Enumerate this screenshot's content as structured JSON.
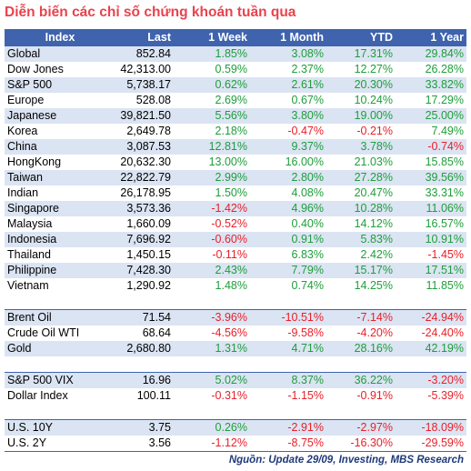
{
  "title": "Diễn biến các chỉ số chứng khoán tuần qua",
  "headers": [
    "Index",
    "Last",
    "1 Week",
    "1 Month",
    "YTD",
    "1 Year"
  ],
  "groups": [
    [
      [
        "Global",
        "852.84",
        "1.85%",
        "3.08%",
        "17.31%",
        "29.84%"
      ],
      [
        "Dow Jones",
        "42,313.00",
        "0.59%",
        "2.37%",
        "12.27%",
        "26.28%"
      ],
      [
        "S&P 500",
        "5,738.17",
        "0.62%",
        "2.61%",
        "20.30%",
        "33.82%"
      ],
      [
        "Europe",
        "528.08",
        "2.69%",
        "0.67%",
        "10.24%",
        "17.29%"
      ],
      [
        "Japanese",
        "39,821.50",
        "5.56%",
        "3.80%",
        "19.00%",
        "25.00%"
      ],
      [
        "Korea",
        "2,649.78",
        "2.18%",
        "-0.47%",
        "-0.21%",
        "7.49%"
      ],
      [
        "China",
        "3,087.53",
        "12.81%",
        "9.37%",
        "3.78%",
        "-0.74%"
      ],
      [
        "HongKong",
        "20,632.30",
        "13.00%",
        "16.00%",
        "21.03%",
        "15.85%"
      ],
      [
        "Taiwan",
        "22,822.79",
        "2.99%",
        "2.80%",
        "27.28%",
        "39.56%"
      ],
      [
        "Indian",
        "26,178.95",
        "1.50%",
        "4.08%",
        "20.47%",
        "33.31%"
      ],
      [
        "Singapore",
        "3,573.36",
        "-1.42%",
        "4.96%",
        "10.28%",
        "11.06%"
      ],
      [
        "Malaysia",
        "1,660.09",
        "-0.52%",
        "0.40%",
        "14.12%",
        "16.57%"
      ],
      [
        "Indonesia",
        "7,696.92",
        "-0.60%",
        "0.91%",
        "5.83%",
        "10.91%"
      ],
      [
        "Thailand",
        "1,450.15",
        "-0.11%",
        "6.83%",
        "2.42%",
        "-1.45%"
      ],
      [
        "Philippine",
        "7,428.30",
        "2.43%",
        "7.79%",
        "15.17%",
        "17.51%"
      ],
      [
        "Vietnam",
        "1,290.92",
        "1.48%",
        "0.74%",
        "14.25%",
        "11.85%"
      ]
    ],
    [
      [
        "Brent Oil",
        "71.54",
        "-3.96%",
        "-10.51%",
        "-7.14%",
        "-24.94%"
      ],
      [
        "Crude Oil WTI",
        "68.64",
        "-4.56%",
        "-9.58%",
        "-4.20%",
        "-24.40%"
      ],
      [
        "Gold",
        "2,680.80",
        "1.31%",
        "4.71%",
        "28.16%",
        "42.19%"
      ]
    ],
    [
      [
        "S&P 500 VIX",
        "16.96",
        "5.02%",
        "8.37%",
        "36.22%",
        "-3.20%"
      ],
      [
        "Dollar Index",
        "100.11",
        "-0.31%",
        "-1.15%",
        "-0.91%",
        "-5.39%"
      ]
    ],
    [
      [
        "U.S. 10Y",
        "3.75",
        "0.26%",
        "-2.91%",
        "-2.97%",
        "-18.09%"
      ],
      [
        "U.S. 2Y",
        "3.56",
        "-1.12%",
        "-8.75%",
        "-16.30%",
        "-29.59%"
      ]
    ]
  ],
  "source": "Nguồn: Update 29/09, Investing, MBS Research",
  "colors": {
    "header_bg": "#3f63ad",
    "alt_row": "#dbe4f3",
    "positive": "#1e9e3a",
    "negative": "#e8202a",
    "title": "#e8434d"
  }
}
